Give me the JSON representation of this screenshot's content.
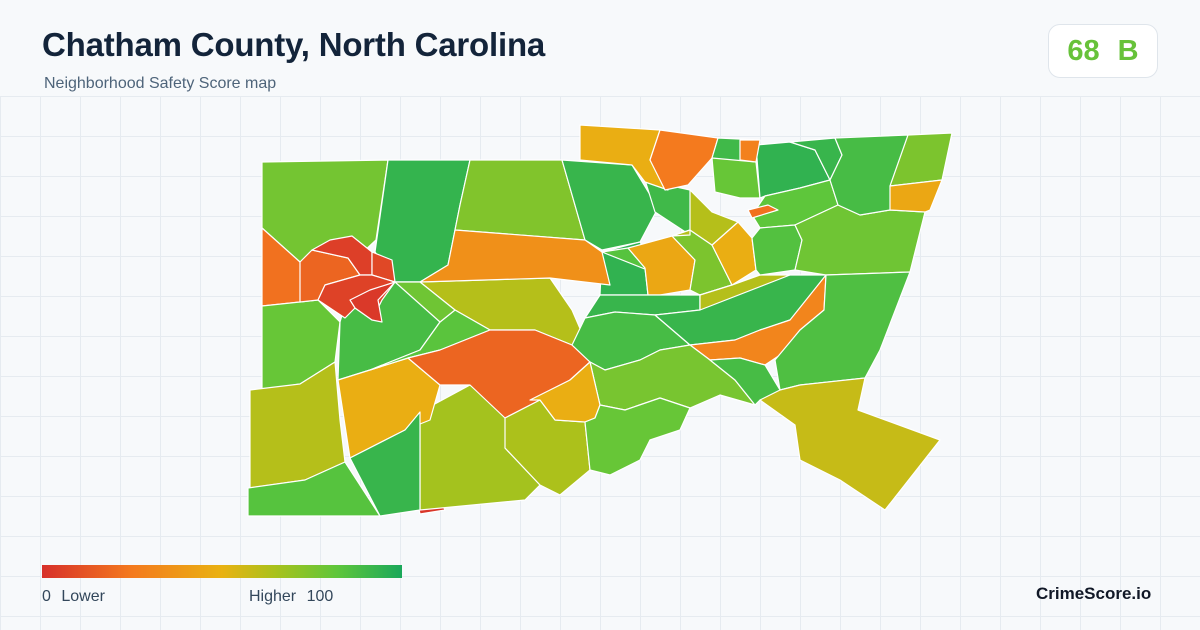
{
  "header": {
    "title": "Chatham County, North Carolina",
    "subtitle": "Neighborhood Safety Score map"
  },
  "score": {
    "value": "68",
    "grade": "B",
    "color": "#67c23a"
  },
  "legend": {
    "min_value": "0",
    "min_label": "Lower",
    "max_label": "Higher",
    "max_value": "100",
    "colors": [
      "#d7302a",
      "#f47a1e",
      "#e9b212",
      "#a8c21c",
      "#5ec63b",
      "#1aa85a"
    ]
  },
  "brand": "CrimeScore.io",
  "map": {
    "regions": [
      {
        "id": "r01",
        "score": 77
      },
      {
        "id": "r02",
        "score": 93
      },
      {
        "id": "r03",
        "score": 74
      },
      {
        "id": "r04",
        "score": 92
      },
      {
        "id": "r05",
        "score": 90
      },
      {
        "id": "r06",
        "score": 48
      },
      {
        "id": "r07",
        "score": 25
      },
      {
        "id": "r08",
        "score": 90
      },
      {
        "id": "r09",
        "score": 22
      },
      {
        "id": "r10",
        "score": 80
      },
      {
        "id": "r11",
        "score": 62
      },
      {
        "id": "r12",
        "score": 94
      },
      {
        "id": "r13",
        "score": 88
      },
      {
        "id": "r14",
        "score": 62
      },
      {
        "id": "r15",
        "score": 2
      },
      {
        "id": "r16",
        "score": 84
      },
      {
        "id": "r17",
        "score": 66
      },
      {
        "id": "r18",
        "score": 48
      },
      {
        "id": "r19",
        "score": 92
      },
      {
        "id": "r20",
        "score": 83
      },
      {
        "id": "r21",
        "score": 18
      },
      {
        "id": "r22",
        "score": 64
      },
      {
        "id": "r23",
        "score": 18
      },
      {
        "id": "r24",
        "score": 5
      },
      {
        "id": "r25",
        "score": 8
      },
      {
        "id": "r26",
        "score": 6
      },
      {
        "id": "r27",
        "score": 3
      },
      {
        "id": "r28",
        "score": 78
      },
      {
        "id": "r29",
        "score": 35
      },
      {
        "id": "r30",
        "score": 84
      },
      {
        "id": "r31",
        "score": 45
      },
      {
        "id": "r32",
        "score": 75
      },
      {
        "id": "r33",
        "score": 92
      },
      {
        "id": "r34",
        "score": 88
      },
      {
        "id": "r35",
        "score": 92
      },
      {
        "id": "r36",
        "score": 30
      },
      {
        "id": "r37",
        "score": 62
      },
      {
        "id": "r38",
        "score": 48
      },
      {
        "id": "r39",
        "score": 62
      },
      {
        "id": "r40",
        "score": 80
      },
      {
        "id": "r41",
        "score": 94
      },
      {
        "id": "r42",
        "score": 92
      },
      {
        "id": "r43",
        "score": 82
      },
      {
        "id": "r44",
        "score": 85
      },
      {
        "id": "r45",
        "score": 78
      },
      {
        "id": "r46",
        "score": 88
      },
      {
        "id": "r47",
        "score": 75
      },
      {
        "id": "r48",
        "score": 22
      },
      {
        "id": "r49",
        "score": 45
      },
      {
        "id": "r50",
        "score": 86
      },
      {
        "id": "r51",
        "score": 76
      },
      {
        "id": "r52",
        "score": 88
      },
      {
        "id": "r53",
        "score": 58
      },
      {
        "id": "r54",
        "score": 48
      },
      {
        "id": "r55",
        "score": 28
      },
      {
        "id": "r56",
        "score": 80
      }
    ]
  }
}
